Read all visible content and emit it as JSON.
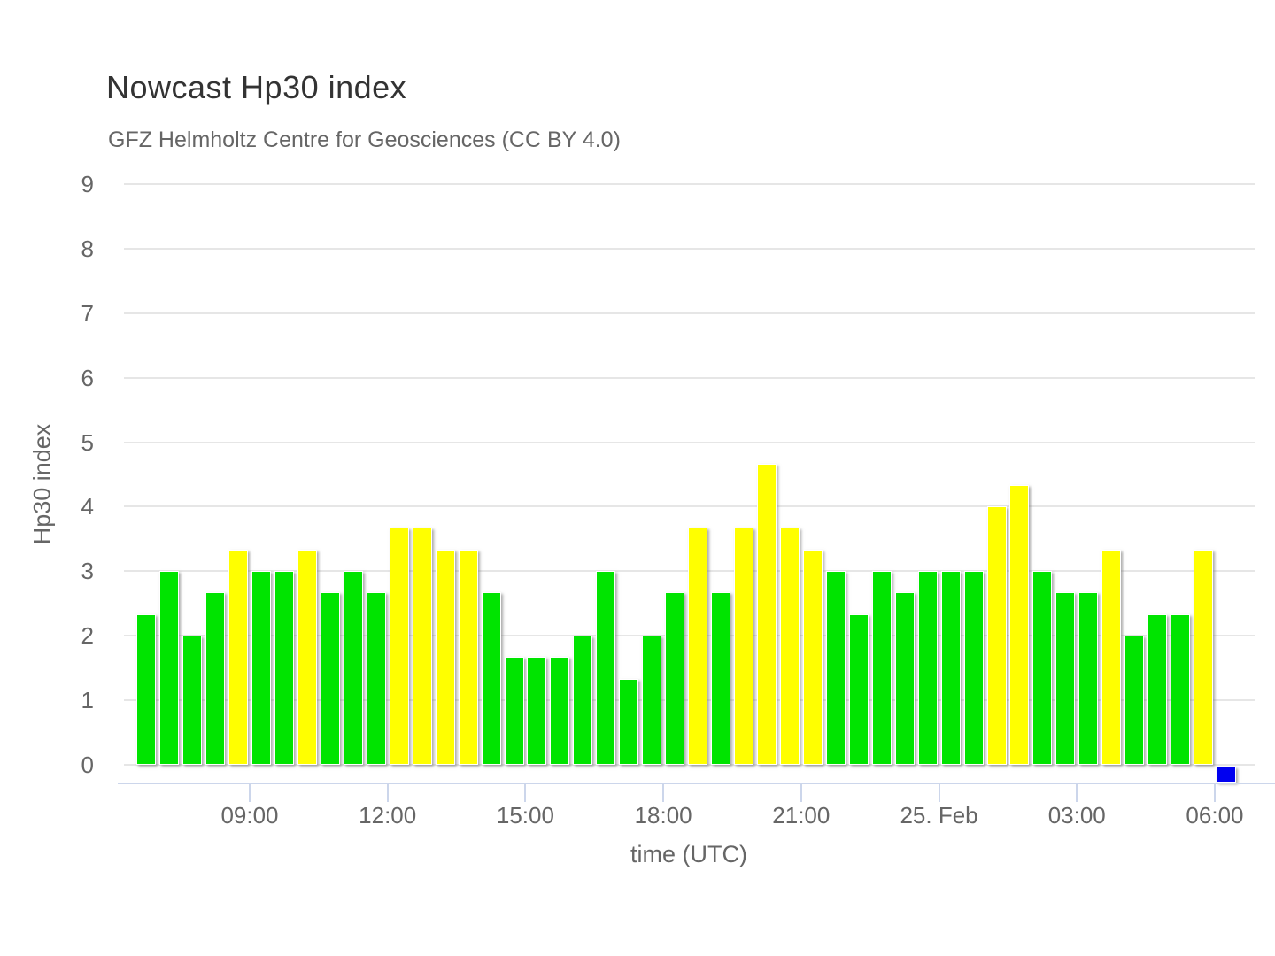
{
  "header": {
    "title": "Nowcast Hp30 index",
    "subtitle": "GFZ Helmholtz Centre for Geosciences (CC BY 4.0)"
  },
  "colors": {
    "green": "#00e400",
    "yellow": "#ffff00",
    "blue": "#0000f0",
    "grid_line": "#e6e6e6",
    "axis_line": "#ccd6eb",
    "label_text": "#666666",
    "title_text": "#333333"
  },
  "chart_data": {
    "type": "bar",
    "title": "Nowcast Hp30 index",
    "subtitle": "GFZ Helmholtz Centre for Geosciences (CC BY 4.0)",
    "xlabel": "time (UTC)",
    "ylabel": "Hp30 index",
    "ylim": [
      0,
      9
    ],
    "yticks": [
      0,
      1,
      2,
      3,
      4,
      5,
      6,
      7,
      8,
      9
    ],
    "xtick_labels": [
      "09:00",
      "12:00",
      "15:00",
      "18:00",
      "21:00",
      "25. Feb",
      "03:00",
      "06:00"
    ],
    "grid": "horizontal",
    "legend": "none",
    "bar_interval_minutes": 30,
    "points": [
      {
        "time": "06:30",
        "value": 2.33,
        "color": "green"
      },
      {
        "time": "07:00",
        "value": 3.0,
        "color": "green"
      },
      {
        "time": "07:30",
        "value": 2.0,
        "color": "green"
      },
      {
        "time": "08:00",
        "value": 2.67,
        "color": "green"
      },
      {
        "time": "08:30",
        "value": 3.33,
        "color": "yellow"
      },
      {
        "time": "09:00",
        "value": 3.0,
        "color": "green"
      },
      {
        "time": "09:30",
        "value": 3.0,
        "color": "green"
      },
      {
        "time": "10:00",
        "value": 3.33,
        "color": "yellow"
      },
      {
        "time": "10:30",
        "value": 2.67,
        "color": "green"
      },
      {
        "time": "11:00",
        "value": 3.0,
        "color": "green"
      },
      {
        "time": "11:30",
        "value": 2.67,
        "color": "green"
      },
      {
        "time": "12:00",
        "value": 3.67,
        "color": "yellow"
      },
      {
        "time": "12:30",
        "value": 3.67,
        "color": "yellow"
      },
      {
        "time": "13:00",
        "value": 3.33,
        "color": "yellow"
      },
      {
        "time": "13:30",
        "value": 3.33,
        "color": "yellow"
      },
      {
        "time": "14:00",
        "value": 2.67,
        "color": "green"
      },
      {
        "time": "14:30",
        "value": 1.67,
        "color": "green"
      },
      {
        "time": "15:00",
        "value": 1.67,
        "color": "green"
      },
      {
        "time": "15:30",
        "value": 1.67,
        "color": "green"
      },
      {
        "time": "16:00",
        "value": 2.0,
        "color": "green"
      },
      {
        "time": "16:30",
        "value": 3.0,
        "color": "green"
      },
      {
        "time": "17:00",
        "value": 1.33,
        "color": "green"
      },
      {
        "time": "17:30",
        "value": 2.0,
        "color": "green"
      },
      {
        "time": "18:00",
        "value": 2.67,
        "color": "green"
      },
      {
        "time": "18:30",
        "value": 3.67,
        "color": "yellow"
      },
      {
        "time": "19:00",
        "value": 2.67,
        "color": "green"
      },
      {
        "time": "19:30",
        "value": 3.67,
        "color": "yellow"
      },
      {
        "time": "20:00",
        "value": 4.67,
        "color": "yellow"
      },
      {
        "time": "20:30",
        "value": 3.67,
        "color": "yellow"
      },
      {
        "time": "21:00",
        "value": 3.33,
        "color": "yellow"
      },
      {
        "time": "21:30",
        "value": 3.0,
        "color": "green"
      },
      {
        "time": "22:00",
        "value": 2.33,
        "color": "green"
      },
      {
        "time": "22:30",
        "value": 3.0,
        "color": "green"
      },
      {
        "time": "23:00",
        "value": 2.67,
        "color": "green"
      },
      {
        "time": "23:30",
        "value": 3.0,
        "color": "green"
      },
      {
        "time": "00:00",
        "value": 3.0,
        "color": "green"
      },
      {
        "time": "00:30",
        "value": 3.0,
        "color": "green"
      },
      {
        "time": "01:00",
        "value": 4.0,
        "color": "yellow"
      },
      {
        "time": "01:30",
        "value": 4.33,
        "color": "yellow"
      },
      {
        "time": "02:00",
        "value": 3.0,
        "color": "green"
      },
      {
        "time": "02:30",
        "value": 2.67,
        "color": "green"
      },
      {
        "time": "03:00",
        "value": 2.67,
        "color": "green"
      },
      {
        "time": "03:30",
        "value": 3.33,
        "color": "yellow"
      },
      {
        "time": "04:00",
        "value": 2.0,
        "color": "green"
      },
      {
        "time": "04:30",
        "value": 2.33,
        "color": "green"
      },
      {
        "time": "05:00",
        "value": 2.33,
        "color": "green"
      },
      {
        "time": "05:30",
        "value": 3.33,
        "color": "yellow"
      },
      {
        "time": "06:00",
        "value": 0,
        "color": "blue"
      }
    ]
  }
}
